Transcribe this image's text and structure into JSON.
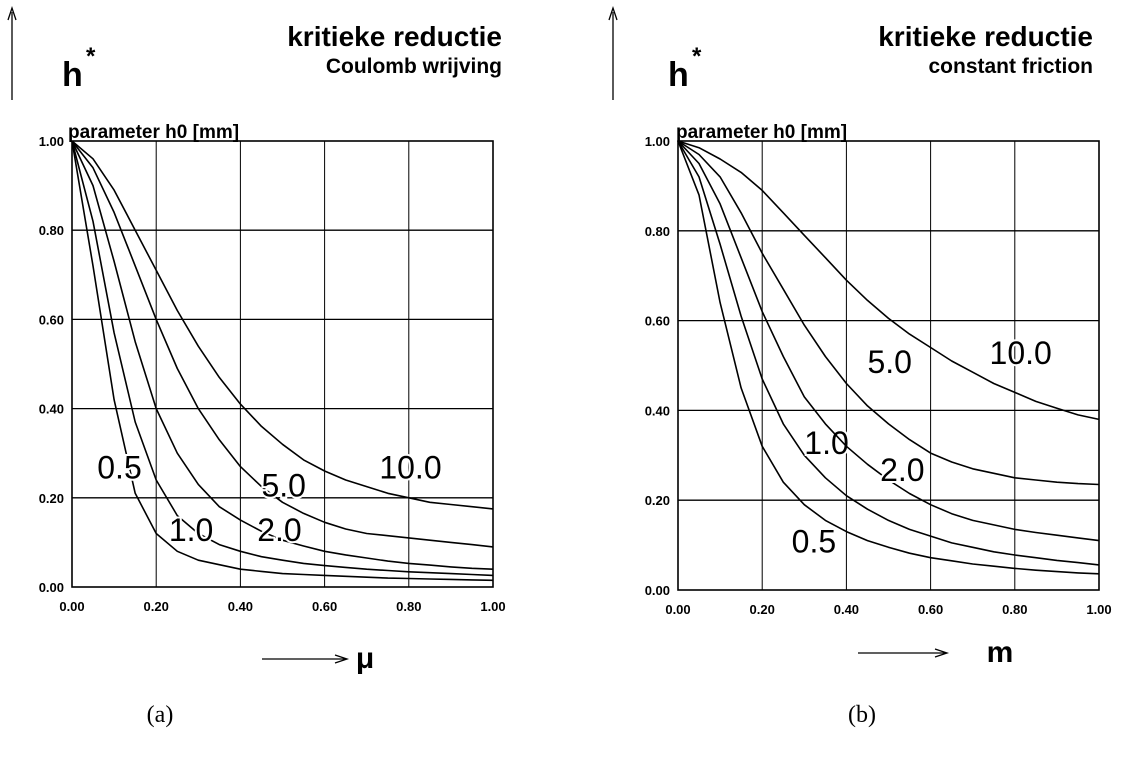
{
  "chart_data": [
    {
      "type": "line",
      "panel_label": "(a)",
      "title": "kritieke reductie",
      "subtitle": "Coulomb wrijving",
      "ylabel": "h",
      "ylabel_sup": "*",
      "xlabel": "μ",
      "legend_title": "parameter h0 [mm]",
      "xlim": [
        0,
        1
      ],
      "ylim": [
        0,
        1
      ],
      "grid": true,
      "x_ticks": [
        "0.00",
        "0.20",
        "0.40",
        "0.60",
        "0.80",
        "1.00"
      ],
      "y_ticks": [
        "0.00",
        "0.20",
        "0.40",
        "0.60",
        "0.80",
        "1.00"
      ],
      "x": [
        0,
        0.05,
        0.1,
        0.15,
        0.2,
        0.25,
        0.3,
        0.35,
        0.4,
        0.45,
        0.5,
        0.55,
        0.6,
        0.65,
        0.7,
        0.75,
        0.8,
        0.85,
        0.9,
        0.95,
        1.0
      ],
      "series": [
        {
          "name": "0.5",
          "label_at": [
            0.06,
            0.27
          ],
          "values": [
            1.0,
            0.72,
            0.42,
            0.21,
            0.12,
            0.08,
            0.06,
            0.05,
            0.04,
            0.035,
            0.03,
            0.028,
            0.026,
            0.024,
            0.022,
            0.02,
            0.019,
            0.018,
            0.017,
            0.016,
            0.015
          ]
        },
        {
          "name": "1.0",
          "label_at": [
            0.23,
            0.13
          ],
          "values": [
            1.0,
            0.82,
            0.57,
            0.37,
            0.24,
            0.16,
            0.12,
            0.095,
            0.08,
            0.068,
            0.06,
            0.053,
            0.048,
            0.044,
            0.04,
            0.037,
            0.034,
            0.032,
            0.03,
            0.028,
            0.026
          ]
        },
        {
          "name": "2.0",
          "label_at": [
            0.44,
            0.13
          ],
          "values": [
            1.0,
            0.9,
            0.73,
            0.55,
            0.4,
            0.3,
            0.23,
            0.18,
            0.15,
            0.125,
            0.105,
            0.092,
            0.08,
            0.072,
            0.065,
            0.058,
            0.053,
            0.049,
            0.045,
            0.042,
            0.04
          ]
        },
        {
          "name": "5.0",
          "label_at": [
            0.45,
            0.23
          ],
          "values": [
            1.0,
            0.94,
            0.84,
            0.72,
            0.6,
            0.49,
            0.4,
            0.33,
            0.27,
            0.225,
            0.19,
            0.165,
            0.145,
            0.13,
            0.12,
            0.115,
            0.11,
            0.105,
            0.1,
            0.095,
            0.09
          ]
        },
        {
          "name": "10.0",
          "label_at": [
            0.73,
            0.27
          ],
          "values": [
            1.0,
            0.96,
            0.89,
            0.8,
            0.71,
            0.62,
            0.54,
            0.47,
            0.41,
            0.36,
            0.32,
            0.285,
            0.26,
            0.24,
            0.225,
            0.21,
            0.2,
            0.19,
            0.185,
            0.18,
            0.175
          ]
        }
      ]
    },
    {
      "type": "line",
      "panel_label": "(b)",
      "title": "kritieke reductie",
      "subtitle": "constant friction",
      "ylabel": "h",
      "ylabel_sup": "*",
      "xlabel": "m",
      "legend_title": "parameter h0 [mm]",
      "xlim": [
        0,
        1
      ],
      "ylim": [
        0,
        1
      ],
      "grid": true,
      "x_ticks": [
        "0.00",
        "0.20",
        "0.40",
        "0.60",
        "0.80",
        "1.00"
      ],
      "y_ticks": [
        "0.00",
        "0.20",
        "0.40",
        "0.60",
        "0.80",
        "1.00"
      ],
      "x": [
        0,
        0.05,
        0.1,
        0.15,
        0.2,
        0.25,
        0.3,
        0.35,
        0.4,
        0.45,
        0.5,
        0.55,
        0.6,
        0.65,
        0.7,
        0.75,
        0.8,
        0.85,
        0.9,
        0.95,
        1.0
      ],
      "series": [
        {
          "name": "0.5",
          "label_at": [
            0.27,
            0.11
          ],
          "values": [
            1.0,
            0.88,
            0.64,
            0.45,
            0.32,
            0.24,
            0.19,
            0.155,
            0.13,
            0.11,
            0.095,
            0.082,
            0.072,
            0.065,
            0.058,
            0.053,
            0.048,
            0.044,
            0.041,
            0.038,
            0.036
          ]
        },
        {
          "name": "1.0",
          "label_at": [
            0.3,
            0.33
          ],
          "values": [
            1.0,
            0.92,
            0.77,
            0.61,
            0.47,
            0.37,
            0.3,
            0.25,
            0.21,
            0.18,
            0.155,
            0.135,
            0.12,
            0.105,
            0.095,
            0.085,
            0.078,
            0.072,
            0.066,
            0.061,
            0.056
          ]
        },
        {
          "name": "2.0",
          "label_at": [
            0.48,
            0.27
          ],
          "values": [
            1.0,
            0.95,
            0.86,
            0.74,
            0.62,
            0.52,
            0.43,
            0.37,
            0.32,
            0.28,
            0.245,
            0.215,
            0.19,
            0.17,
            0.155,
            0.145,
            0.135,
            0.128,
            0.122,
            0.116,
            0.11
          ]
        },
        {
          "name": "5.0",
          "label_at": [
            0.45,
            0.51
          ],
          "values": [
            1.0,
            0.97,
            0.92,
            0.84,
            0.75,
            0.67,
            0.59,
            0.52,
            0.46,
            0.41,
            0.37,
            0.335,
            0.305,
            0.285,
            0.27,
            0.26,
            0.25,
            0.245,
            0.24,
            0.237,
            0.235
          ]
        },
        {
          "name": "10.0",
          "label_at": [
            0.74,
            0.53
          ],
          "values": [
            1.0,
            0.985,
            0.96,
            0.93,
            0.89,
            0.84,
            0.79,
            0.74,
            0.69,
            0.645,
            0.605,
            0.57,
            0.54,
            0.51,
            0.485,
            0.46,
            0.44,
            0.42,
            0.405,
            0.39,
            0.38
          ]
        }
      ]
    }
  ]
}
